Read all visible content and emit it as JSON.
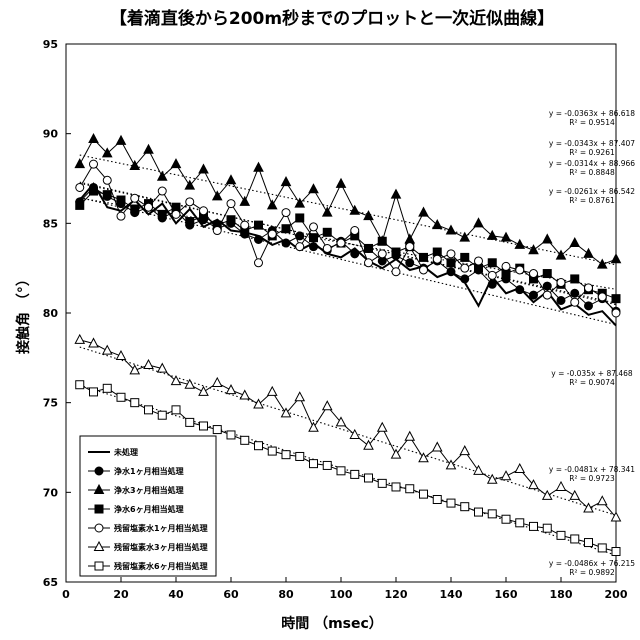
{
  "chart_data": {
    "type": "scatter",
    "title": "【着滴直後から200m秒までのプロットと一次近似曲線】",
    "xlabel": "時間 （msec）",
    "ylabel": "接触角 （°）",
    "xlim": [
      0,
      200
    ],
    "ylim": [
      65,
      95
    ],
    "xticks": [
      0,
      20,
      40,
      60,
      80,
      100,
      120,
      140,
      160,
      180,
      200
    ],
    "yticks": [
      65,
      70,
      75,
      80,
      85,
      90,
      95
    ],
    "grid": false,
    "legend_position": "bottom-left",
    "series": [
      {
        "name": "未処理",
        "marker": "line",
        "x": [
          5,
          10,
          15,
          20,
          25,
          30,
          35,
          40,
          45,
          50,
          55,
          60,
          65,
          70,
          75,
          80,
          85,
          90,
          95,
          100,
          105,
          110,
          115,
          120,
          125,
          130,
          135,
          140,
          145,
          150,
          155,
          160,
          165,
          170,
          175,
          180,
          185,
          190,
          195,
          200
        ],
        "y": [
          86.3,
          87.2,
          85.9,
          85.7,
          86.3,
          85.5,
          86.1,
          85.0,
          85.8,
          84.8,
          85.2,
          84.6,
          84.5,
          84.3,
          83.8,
          84.1,
          83.5,
          83.9,
          83.3,
          83.1,
          83.6,
          82.9,
          82.5,
          83.0,
          82.4,
          82.6,
          82.0,
          82.3,
          81.7,
          80.4,
          82.0,
          81.1,
          81.4,
          80.6,
          81.2,
          80.2,
          80.5,
          79.9,
          80.1,
          79.3
        ]
      },
      {
        "name": "浄水1ヶ月相当処理",
        "marker": "circle-filled",
        "x": [
          5,
          10,
          15,
          20,
          25,
          30,
          35,
          40,
          45,
          50,
          55,
          60,
          65,
          70,
          75,
          80,
          85,
          90,
          95,
          100,
          105,
          110,
          115,
          120,
          125,
          130,
          135,
          140,
          145,
          150,
          155,
          160,
          165,
          170,
          175,
          180,
          185,
          190,
          195,
          200
        ],
        "y": [
          86.2,
          87.0,
          86.5,
          86.1,
          85.6,
          85.9,
          85.3,
          85.7,
          84.9,
          85.2,
          84.7,
          85.0,
          84.4,
          84.1,
          84.6,
          83.9,
          84.3,
          83.7,
          83.5,
          84.0,
          83.3,
          83.6,
          82.9,
          83.2,
          82.8,
          82.5,
          82.9,
          82.3,
          81.9,
          82.4,
          81.6,
          81.9,
          81.3,
          81.0,
          81.5,
          80.7,
          81.1,
          80.4,
          80.8,
          80.1
        ]
      },
      {
        "name": "浄水3ヶ月相当処理",
        "marker": "triangle-filled",
        "x": [
          5,
          10,
          15,
          20,
          25,
          30,
          35,
          40,
          45,
          50,
          55,
          60,
          65,
          70,
          75,
          80,
          85,
          90,
          95,
          100,
          105,
          110,
          115,
          120,
          125,
          130,
          135,
          140,
          145,
          150,
          155,
          160,
          165,
          170,
          175,
          180,
          185,
          190,
          195,
          200
        ],
        "y": [
          88.3,
          89.7,
          88.9,
          89.6,
          88.2,
          89.1,
          87.6,
          88.3,
          87.1,
          88.0,
          86.5,
          87.4,
          86.2,
          88.1,
          86.0,
          87.3,
          86.1,
          86.9,
          85.6,
          87.2,
          85.7,
          85.4,
          84.0,
          86.6,
          84.1,
          85.6,
          84.9,
          84.6,
          84.2,
          85.0,
          84.3,
          84.2,
          83.8,
          83.5,
          84.1,
          83.2,
          83.9,
          83.3,
          82.7,
          83.0
        ]
      },
      {
        "name": "浄水6ヶ月相当処理",
        "marker": "square-filled",
        "x": [
          5,
          10,
          15,
          20,
          25,
          30,
          35,
          40,
          45,
          50,
          55,
          60,
          65,
          70,
          75,
          80,
          85,
          90,
          95,
          100,
          105,
          110,
          115,
          120,
          125,
          130,
          135,
          140,
          145,
          150,
          155,
          160,
          165,
          170,
          175,
          180,
          185,
          190,
          195,
          200
        ],
        "y": [
          86.0,
          86.8,
          86.6,
          86.3,
          85.8,
          86.1,
          85.5,
          85.9,
          85.1,
          85.4,
          84.9,
          85.2,
          84.6,
          84.9,
          84.3,
          84.7,
          85.3,
          84.2,
          84.5,
          83.9,
          84.3,
          83.6,
          84.0,
          83.4,
          83.7,
          83.1,
          83.4,
          82.8,
          83.1,
          82.5,
          82.8,
          82.2,
          82.5,
          81.9,
          82.2,
          81.6,
          81.9,
          81.3,
          81.1,
          80.8
        ]
      },
      {
        "name": "残留塩素水1ヶ月相当処理",
        "marker": "circle-open",
        "x": [
          5,
          10,
          15,
          20,
          25,
          30,
          35,
          40,
          45,
          50,
          55,
          60,
          65,
          70,
          75,
          80,
          85,
          90,
          95,
          100,
          105,
          110,
          115,
          120,
          125,
          130,
          135,
          140,
          145,
          150,
          155,
          160,
          165,
          170,
          175,
          180,
          185,
          190,
          195,
          200
        ],
        "y": [
          87.0,
          88.3,
          87.4,
          85.4,
          86.4,
          85.9,
          86.8,
          85.5,
          86.2,
          85.7,
          84.6,
          86.1,
          84.9,
          82.8,
          84.4,
          85.6,
          83.7,
          84.8,
          83.6,
          83.9,
          84.6,
          82.8,
          83.3,
          82.3,
          83.7,
          82.4,
          83.0,
          83.3,
          82.5,
          82.9,
          82.1,
          82.6,
          82.4,
          82.2,
          81.0,
          81.7,
          80.6,
          81.4,
          80.9,
          80.0
        ]
      },
      {
        "name": "残留塩素水3ヶ月相当処理",
        "marker": "triangle-open",
        "x": [
          5,
          10,
          15,
          20,
          25,
          30,
          35,
          40,
          45,
          50,
          55,
          60,
          65,
          70,
          75,
          80,
          85,
          90,
          95,
          100,
          105,
          110,
          115,
          120,
          125,
          130,
          135,
          140,
          145,
          150,
          155,
          160,
          165,
          170,
          175,
          180,
          185,
          190,
          195,
          200
        ],
        "y": [
          78.5,
          78.3,
          77.9,
          77.6,
          76.8,
          77.1,
          76.9,
          76.2,
          76.0,
          75.6,
          76.1,
          75.7,
          75.4,
          74.9,
          75.6,
          74.4,
          75.3,
          73.6,
          74.8,
          73.9,
          73.2,
          72.6,
          73.6,
          72.1,
          73.1,
          71.9,
          72.5,
          71.5,
          72.3,
          71.2,
          70.7,
          70.9,
          71.3,
          70.4,
          69.8,
          70.3,
          69.8,
          69.1,
          69.5,
          68.6
        ]
      },
      {
        "name": "残留塩素水6ヶ月相当処理",
        "marker": "square-open",
        "x": [
          5,
          10,
          15,
          20,
          25,
          30,
          35,
          40,
          45,
          50,
          55,
          60,
          65,
          70,
          75,
          80,
          85,
          90,
          95,
          100,
          105,
          110,
          115,
          120,
          125,
          130,
          135,
          140,
          145,
          150,
          155,
          160,
          165,
          170,
          175,
          180,
          185,
          190,
          195,
          200
        ],
        "y": [
          76.0,
          75.6,
          75.8,
          75.3,
          75.0,
          74.6,
          74.3,
          74.6,
          73.9,
          73.7,
          73.5,
          73.2,
          72.9,
          72.6,
          72.3,
          72.1,
          72.0,
          71.6,
          71.5,
          71.2,
          71.0,
          70.8,
          70.5,
          70.3,
          70.2,
          69.9,
          69.6,
          69.4,
          69.2,
          68.9,
          68.8,
          68.5,
          68.3,
          68.1,
          68.0,
          67.6,
          67.4,
          67.2,
          66.9,
          66.7
        ]
      }
    ],
    "trendline_labels": [
      {
        "equation": "y = -0.0363x + 86.618",
        "r2": "R² = 0.9514"
      },
      {
        "equation": "y = -0.0343x + 87.407",
        "r2": "R² = 0.9261"
      },
      {
        "equation": "y = -0.0314x + 88.966",
        "r2": "R² = 0.8848"
      },
      {
        "equation": "y = -0.0261x + 86.542",
        "r2": "R² = 0.8761"
      },
      {
        "equation": "y = -0.035x + 87.468",
        "r2": "R² = 0.9074"
      },
      {
        "equation": "y = -0.0481x + 78.341",
        "r2": "R² = 0.9723"
      },
      {
        "equation": "y = -0.0486x + 76.215",
        "r2": "R² = 0.9892"
      }
    ],
    "trendlines": [
      {
        "slope": -0.0363,
        "intercept": 86.618
      },
      {
        "slope": -0.0343,
        "intercept": 87.407
      },
      {
        "slope": -0.0314,
        "intercept": 88.966
      },
      {
        "slope": -0.0261,
        "intercept": 86.542
      },
      {
        "slope": -0.035,
        "intercept": 87.468
      },
      {
        "slope": -0.0481,
        "intercept": 78.341
      },
      {
        "slope": -0.0486,
        "intercept": 76.215
      }
    ]
  }
}
